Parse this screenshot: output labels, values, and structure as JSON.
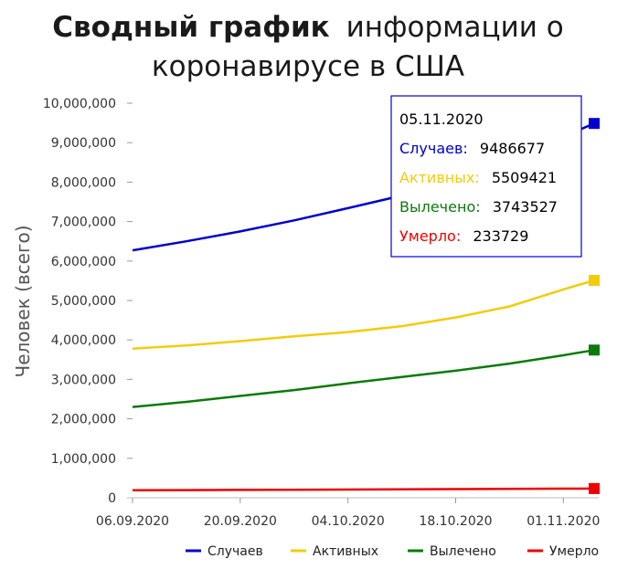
{
  "chart_data": {
    "type": "line",
    "title_bold": "Сводный график",
    "title_rest_1": "информации о",
    "title_line_2": "коронавирусе в США",
    "ylabel": "Человек (всего)",
    "ylim": [
      0,
      10000000
    ],
    "y_ticks": [
      0,
      1000000,
      2000000,
      3000000,
      4000000,
      5000000,
      6000000,
      7000000,
      8000000,
      9000000,
      10000000
    ],
    "y_tick_labels": [
      "0",
      "1,000,000",
      "2,000,000",
      "3,000,000",
      "4,000,000",
      "5,000,000",
      "6,000,000",
      "7,000,000",
      "8,000,000",
      "9,000,000",
      "10,000,000"
    ],
    "x_range": [
      "2020-09-06",
      "2020-11-05"
    ],
    "x_ticks": [
      "2020-09-06",
      "2020-09-20",
      "2020-10-04",
      "2020-10-18",
      "2020-11-01"
    ],
    "x_tick_labels": [
      "06.09.2020",
      "20.09.2020",
      "04.10.2020",
      "18.10.2020",
      "01.11.2020"
    ],
    "legend_position": "bottom-right",
    "series": [
      {
        "name": "Случаев",
        "color": "#0000cc",
        "points": [
          [
            "2020-09-06",
            6270000
          ],
          [
            "2020-09-13",
            6500000
          ],
          [
            "2020-09-20",
            6750000
          ],
          [
            "2020-09-27",
            7030000
          ],
          [
            "2020-10-04",
            7340000
          ],
          [
            "2020-10-11",
            7660000
          ],
          [
            "2020-10-18",
            8050000
          ],
          [
            "2020-10-25",
            8560000
          ],
          [
            "2020-11-01",
            9150000
          ],
          [
            "2020-11-05",
            9486677
          ]
        ]
      },
      {
        "name": "Активных",
        "color": "#f2cc0c",
        "points": [
          [
            "2020-09-06",
            3780000
          ],
          [
            "2020-09-13",
            3860000
          ],
          [
            "2020-09-20",
            3970000
          ],
          [
            "2020-09-27",
            4090000
          ],
          [
            "2020-10-04",
            4200000
          ],
          [
            "2020-10-11",
            4350000
          ],
          [
            "2020-10-18",
            4570000
          ],
          [
            "2020-10-25",
            4850000
          ],
          [
            "2020-11-01",
            5280000
          ],
          [
            "2020-11-05",
            5509421
          ]
        ]
      },
      {
        "name": "Вылечено",
        "color": "#0a7a0a",
        "points": [
          [
            "2020-09-06",
            2300000
          ],
          [
            "2020-09-13",
            2430000
          ],
          [
            "2020-09-20",
            2580000
          ],
          [
            "2020-09-27",
            2730000
          ],
          [
            "2020-10-04",
            2900000
          ],
          [
            "2020-10-11",
            3060000
          ],
          [
            "2020-10-18",
            3220000
          ],
          [
            "2020-10-25",
            3400000
          ],
          [
            "2020-11-01",
            3610000
          ],
          [
            "2020-11-05",
            3743527
          ]
        ]
      },
      {
        "name": "Умерло",
        "color": "#ee0000",
        "points": [
          [
            "2020-09-06",
            189000
          ],
          [
            "2020-09-13",
            194000
          ],
          [
            "2020-09-20",
            199000
          ],
          [
            "2020-09-27",
            204000
          ],
          [
            "2020-10-04",
            209000
          ],
          [
            "2020-10-11",
            214000
          ],
          [
            "2020-10-18",
            219000
          ],
          [
            "2020-10-25",
            225000
          ],
          [
            "2020-11-01",
            231000
          ],
          [
            "2020-11-05",
            233729
          ]
        ]
      }
    ],
    "tooltip": {
      "date": "05.11.2020",
      "rows": [
        {
          "label": "Случаев:",
          "value": "9486677",
          "color": "#0000cc"
        },
        {
          "label": "Активных:",
          "value": "5509421",
          "color": "#f2cc0c"
        },
        {
          "label": "Вылечено:",
          "value": "3743527",
          "color": "#0a7a0a"
        },
        {
          "label": "Умерло:",
          "value": "233729",
          "color": "#ee0000"
        }
      ]
    }
  }
}
